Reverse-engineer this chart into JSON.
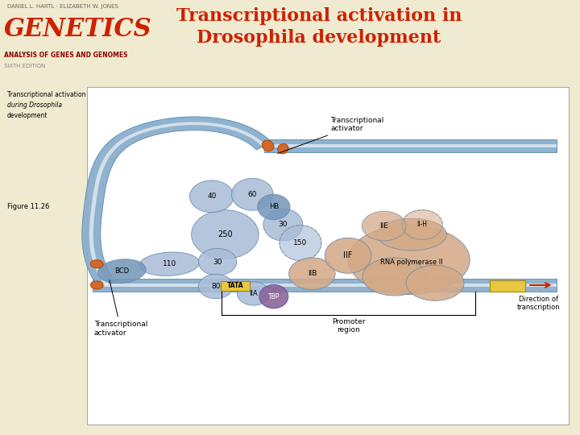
{
  "title": "Transcriptional activation in\nDrosophila development",
  "title_color": "#cc2200",
  "header_bg": "#f0ead0",
  "figure_bg": "#ffffff",
  "border_color": "#aaaaaa",
  "genetics_text": "GENETICS",
  "genetics_color": "#cc2200",
  "subtitle_text": "ANALYSIS OF GENES AND GENOMES",
  "subtitle_color": "#8B0000",
  "author_text": "DANIEL L. HARTL · ELIZABETH W. JONES",
  "edition_text": "SIXTH EDITION",
  "fig_label": "Figure 11.26",
  "side_text_line1": "Transcriptional activation",
  "side_text_line2": "during Drosophila",
  "side_text_line3": "development",
  "dna_color": "#8aaecc",
  "dna_edge": "#5588aa",
  "dna_white_line": "#ddeeff",
  "orange_color": "#d4682a",
  "tfii_color": "#d4aa88",
  "mediator_color": "#aabdd8",
  "mediator_dark": "#7799bb",
  "tbp_color": "#886699",
  "yellow_color": "#e8c840",
  "promoter_region_label": "Promoter\nregion",
  "direction_label": "Direction of\ntranscription",
  "transcriptional_activator_top": "Transcriptional\nactivator",
  "transcriptional_activator_bottom": "Transcriptional\nactivator"
}
